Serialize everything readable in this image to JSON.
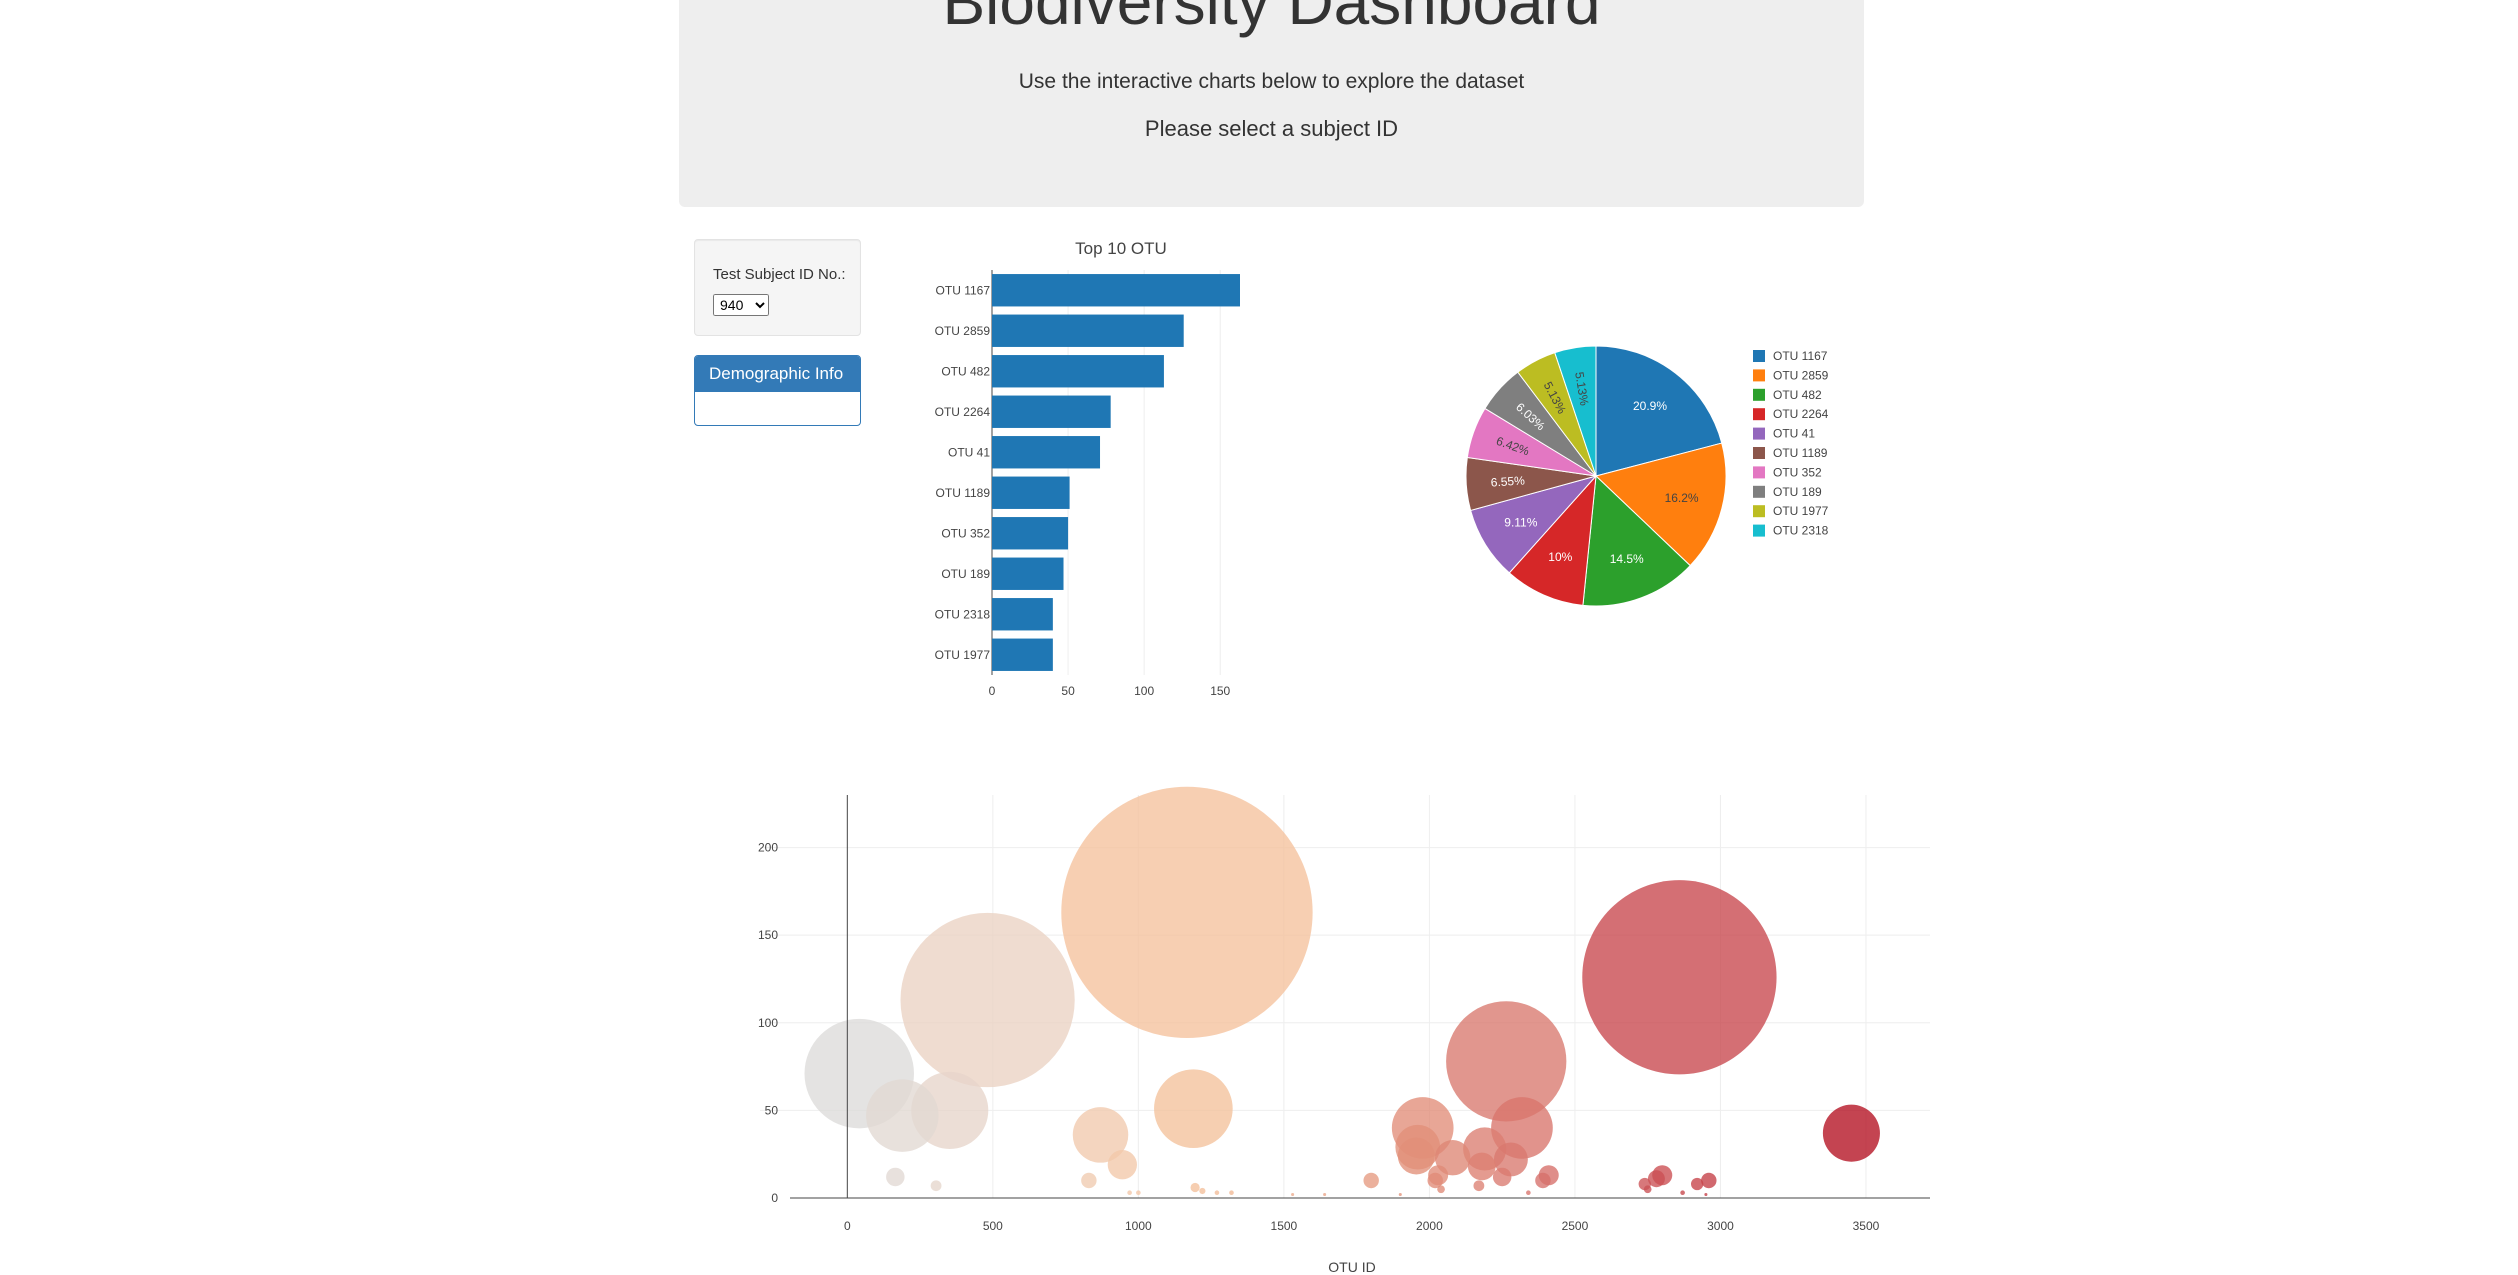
{
  "header": {
    "title": "Biodiversity Dashboard",
    "subtitle": "Use the interactive charts below to explore the dataset",
    "instruction": "Please select a subject ID"
  },
  "selector": {
    "label": "Test Subject ID No.:",
    "selected": "940"
  },
  "demographic_panel": {
    "title": "Demographic Info"
  },
  "colors": {
    "primary": "#337ab7",
    "bar": "#1f77b4"
  },
  "chart_data": [
    {
      "type": "bar",
      "orientation": "horizontal",
      "title": "Top 10 OTU",
      "categories": [
        "OTU 1167",
        "OTU 2859",
        "OTU 482",
        "OTU 2264",
        "OTU 41",
        "OTU 1189",
        "OTU 352",
        "OTU 189",
        "OTU 2318",
        "OTU 1977"
      ],
      "values": [
        163,
        126,
        113,
        78,
        71,
        51,
        50,
        47,
        40,
        40
      ],
      "xlim": [
        0,
        163
      ],
      "xticks": [
        0,
        50,
        100,
        150
      ],
      "grid": true
    },
    {
      "type": "pie",
      "labels": [
        "OTU 1167",
        "OTU 2859",
        "OTU 482",
        "OTU 2264",
        "OTU 41",
        "OTU 1189",
        "OTU 352",
        "OTU 189",
        "OTU 1977",
        "OTU 2318"
      ],
      "values": [
        163,
        126,
        113,
        78,
        71,
        51,
        50,
        47,
        40,
        40
      ],
      "percent_labels": [
        "20.9%",
        "16.2%",
        "14.5%",
        "10%",
        "9.11%",
        "6.55%",
        "6.42%",
        "6.03%",
        "5.13%",
        "5.13%"
      ],
      "colors": [
        "#1f77b4",
        "#ff7f0e",
        "#2ca02c",
        "#d62728",
        "#9467bd",
        "#8c564b",
        "#e377c2",
        "#7f7f7f",
        "#bcbd22",
        "#17becf"
      ],
      "legend_labels": [
        "OTU 1167",
        "OTU 2859",
        "OTU 482",
        "OTU 2264",
        "OTU 41",
        "OTU 1189",
        "OTU 352",
        "OTU 189",
        "OTU 1977",
        "OTU 2318"
      ],
      "legend_position": "right"
    },
    {
      "type": "scatter",
      "style": "bubble",
      "xlabel": "OTU ID",
      "xlim": [
        -300,
        3720
      ],
      "ylim": [
        0,
        230
      ],
      "xticks": [
        0,
        500,
        1000,
        1500,
        2000,
        2500,
        3000,
        3500
      ],
      "yticks": [
        0,
        50,
        100,
        150,
        200
      ],
      "grid": true,
      "colorscale": "Reds-like by OTU ID",
      "points": [
        {
          "x": 41,
          "y": 71
        },
        {
          "x": 189,
          "y": 47
        },
        {
          "x": 352,
          "y": 50
        },
        {
          "x": 482,
          "y": 113
        },
        {
          "x": 1167,
          "y": 163
        },
        {
          "x": 1189,
          "y": 51
        },
        {
          "x": 2264,
          "y": 78
        },
        {
          "x": 2859,
          "y": 126
        },
        {
          "x": 3450,
          "y": 37
        },
        {
          "x": 870,
          "y": 36
        },
        {
          "x": 945,
          "y": 19
        },
        {
          "x": 1977,
          "y": 40
        },
        {
          "x": 1960,
          "y": 29
        },
        {
          "x": 1955,
          "y": 24
        },
        {
          "x": 2080,
          "y": 23
        },
        {
          "x": 2190,
          "y": 28
        },
        {
          "x": 2180,
          "y": 18
        },
        {
          "x": 2318,
          "y": 40
        },
        {
          "x": 2280,
          "y": 22
        },
        {
          "x": 2030,
          "y": 13
        },
        {
          "x": 2020,
          "y": 10
        },
        {
          "x": 2250,
          "y": 12
        },
        {
          "x": 2410,
          "y": 13
        },
        {
          "x": 2390,
          "y": 10
        },
        {
          "x": 2800,
          "y": 13
        },
        {
          "x": 2780,
          "y": 11
        },
        {
          "x": 2740,
          "y": 8
        },
        {
          "x": 2960,
          "y": 10
        },
        {
          "x": 2920,
          "y": 8
        },
        {
          "x": 1800,
          "y": 10
        },
        {
          "x": 165,
          "y": 12
        },
        {
          "x": 830,
          "y": 10
        },
        {
          "x": 305,
          "y": 7
        },
        {
          "x": 1195,
          "y": 6
        },
        {
          "x": 2040,
          "y": 5
        },
        {
          "x": 2170,
          "y": 7
        },
        {
          "x": 2750,
          "y": 5
        },
        {
          "x": 1220,
          "y": 4
        },
        {
          "x": 1270,
          "y": 3
        },
        {
          "x": 1320,
          "y": 3
        },
        {
          "x": 2340,
          "y": 3
        },
        {
          "x": 2870,
          "y": 3
        },
        {
          "x": 970,
          "y": 3
        },
        {
          "x": 1000,
          "y": 3
        },
        {
          "x": 1530,
          "y": 2
        },
        {
          "x": 1640,
          "y": 2
        },
        {
          "x": 1900,
          "y": 2
        },
        {
          "x": 2950,
          "y": 2
        }
      ]
    }
  ]
}
